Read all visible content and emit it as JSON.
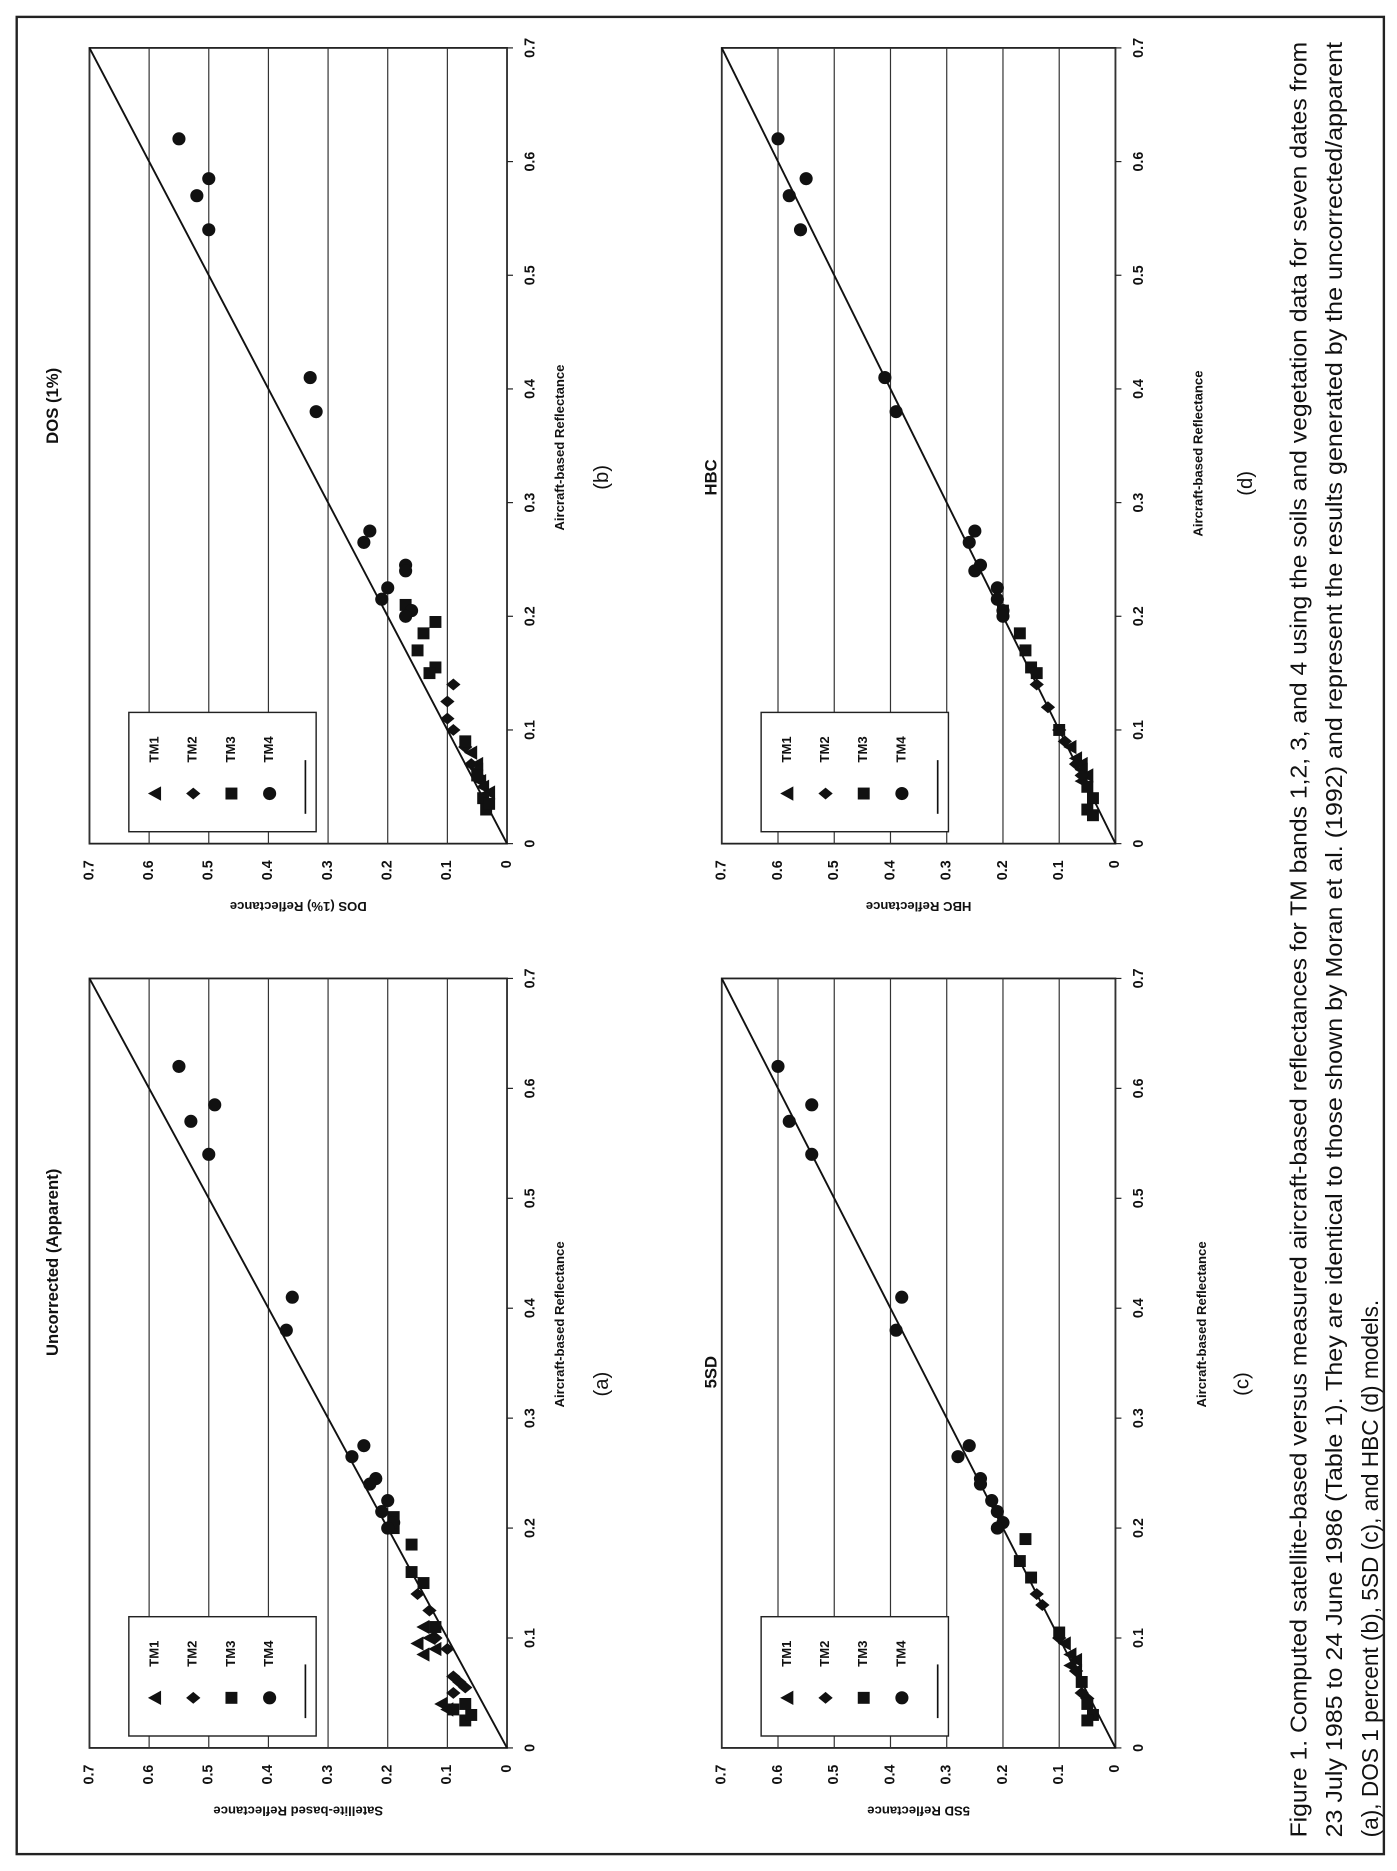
{
  "chart_data": [
    {
      "type": "scatter",
      "title": "Uncorrected (Apparent)",
      "panel_label": "(a)",
      "x_label": "Aircraft-based Reflectance",
      "y_label": "Satellite-based Reflectance",
      "xlim": [
        0,
        0.7
      ],
      "ylim": [
        0,
        0.7
      ],
      "xticks": [
        0,
        0.1,
        0.2,
        0.3,
        0.4,
        0.5,
        0.6,
        0.7
      ],
      "yticks": [
        0,
        0.1,
        0.2,
        0.3,
        0.4,
        0.5,
        0.6,
        0.7
      ],
      "grid": true,
      "diagonal": true,
      "legend": "upper-left",
      "series": [
        {
          "name": "TM1",
          "marker": "triangle",
          "color": "#111111",
          "x": [
            0.11,
            0.1,
            0.095,
            0.085,
            0.09,
            0.04,
            0.035
          ],
          "values": [
            0.14,
            0.13,
            0.15,
            0.14,
            0.12,
            0.11,
            0.1
          ]
        },
        {
          "name": "TM2",
          "marker": "diamond",
          "color": "#111111",
          "x": [
            0.14,
            0.125,
            0.1,
            0.09,
            0.065,
            0.06,
            0.055,
            0.05
          ],
          "values": [
            0.15,
            0.13,
            0.12,
            0.1,
            0.09,
            0.08,
            0.07,
            0.09
          ]
        },
        {
          "name": "TM3",
          "marker": "square",
          "color": "#111111",
          "x": [
            0.21,
            0.2,
            0.185,
            0.16,
            0.15,
            0.11,
            0.035,
            0.025,
            0.03,
            0.04
          ],
          "values": [
            0.19,
            0.19,
            0.16,
            0.16,
            0.14,
            0.12,
            0.09,
            0.07,
            0.06,
            0.07
          ]
        },
        {
          "name": "TM4",
          "marker": "circle",
          "color": "#111111",
          "x": [
            0.62,
            0.57,
            0.585,
            0.54,
            0.41,
            0.38,
            0.275,
            0.265,
            0.245,
            0.24,
            0.225,
            0.215,
            0.205,
            0.2
          ],
          "values": [
            0.55,
            0.53,
            0.49,
            0.5,
            0.36,
            0.37,
            0.24,
            0.26,
            0.22,
            0.23,
            0.2,
            0.21,
            0.19,
            0.2
          ]
        }
      ]
    },
    {
      "type": "scatter",
      "title": "DOS (1%)",
      "panel_label": "(b)",
      "x_label": "Aircraft-based Reflectance",
      "y_label": "DOS (1%) Reflectance",
      "xlim": [
        0,
        0.7
      ],
      "ylim": [
        0,
        0.7
      ],
      "xticks": [
        0,
        0.1,
        0.2,
        0.3,
        0.4,
        0.5,
        0.6,
        0.7
      ],
      "yticks": [
        0,
        0.1,
        0.2,
        0.3,
        0.4,
        0.5,
        0.6,
        0.7
      ],
      "grid": true,
      "diagonal": true,
      "legend": "upper-left",
      "series": [
        {
          "name": "TM1",
          "marker": "triangle",
          "color": "#111111",
          "x": [
            0.08,
            0.07,
            0.065,
            0.055,
            0.05,
            0.045
          ],
          "values": [
            0.06,
            0.05,
            0.05,
            0.045,
            0.04,
            0.03
          ]
        },
        {
          "name": "TM2",
          "marker": "diamond",
          "color": "#111111",
          "x": [
            0.14,
            0.125,
            0.11,
            0.1,
            0.085,
            0.07,
            0.06
          ],
          "values": [
            0.09,
            0.1,
            0.1,
            0.09,
            0.07,
            0.06,
            0.05
          ]
        },
        {
          "name": "TM3",
          "marker": "square",
          "color": "#111111",
          "x": [
            0.21,
            0.195,
            0.185,
            0.17,
            0.155,
            0.15,
            0.09,
            0.06,
            0.04,
            0.03,
            0.035
          ],
          "values": [
            0.17,
            0.12,
            0.14,
            0.15,
            0.12,
            0.13,
            0.07,
            0.05,
            0.04,
            0.035,
            0.03
          ]
        },
        {
          "name": "TM4",
          "marker": "circle",
          "color": "#111111",
          "x": [
            0.62,
            0.57,
            0.585,
            0.54,
            0.41,
            0.38,
            0.275,
            0.265,
            0.245,
            0.24,
            0.225,
            0.215,
            0.205,
            0.2
          ],
          "values": [
            0.55,
            0.52,
            0.5,
            0.5,
            0.33,
            0.32,
            0.23,
            0.24,
            0.17,
            0.17,
            0.2,
            0.21,
            0.16,
            0.17
          ]
        }
      ]
    },
    {
      "type": "scatter",
      "title": "5SD",
      "panel_label": "(c)",
      "x_label": "Aircraft-based Reflectance",
      "y_label": "5SD Reflectance",
      "xlim": [
        0,
        0.7
      ],
      "ylim": [
        0,
        0.7
      ],
      "xticks": [
        0,
        0.1,
        0.2,
        0.3,
        0.4,
        0.5,
        0.6,
        0.7
      ],
      "yticks": [
        0,
        0.1,
        0.2,
        0.3,
        0.4,
        0.5,
        0.6,
        0.7
      ],
      "grid": true,
      "diagonal": true,
      "legend": "upper-left",
      "series": [
        {
          "name": "TM1",
          "marker": "triangle",
          "color": "#111111",
          "x": [
            0.095,
            0.085,
            0.08,
            0.075,
            0.07
          ],
          "values": [
            0.09,
            0.08,
            0.07,
            0.08,
            0.07
          ]
        },
        {
          "name": "TM2",
          "marker": "diamond",
          "color": "#111111",
          "x": [
            0.14,
            0.13,
            0.1,
            0.07,
            0.05,
            0.045
          ],
          "values": [
            0.14,
            0.13,
            0.1,
            0.07,
            0.06,
            0.05
          ]
        },
        {
          "name": "TM3",
          "marker": "square",
          "color": "#111111",
          "x": [
            0.19,
            0.17,
            0.155,
            0.105,
            0.06,
            0.04,
            0.03,
            0.025
          ],
          "values": [
            0.16,
            0.17,
            0.15,
            0.1,
            0.06,
            0.05,
            0.04,
            0.05
          ]
        },
        {
          "name": "TM4",
          "marker": "circle",
          "color": "#111111",
          "x": [
            0.62,
            0.57,
            0.585,
            0.54,
            0.41,
            0.38,
            0.275,
            0.265,
            0.245,
            0.24,
            0.225,
            0.215,
            0.205,
            0.2
          ],
          "values": [
            0.6,
            0.58,
            0.54,
            0.54,
            0.38,
            0.39,
            0.26,
            0.28,
            0.24,
            0.24,
            0.22,
            0.21,
            0.2,
            0.21
          ]
        }
      ]
    },
    {
      "type": "scatter",
      "title": "HBC",
      "panel_label": "(d)",
      "x_label": "Aircraft-based Reflectance",
      "y_label": "HBC Reflectance",
      "xlim": [
        0,
        0.7
      ],
      "ylim": [
        0,
        0.7
      ],
      "xticks": [
        0,
        0.1,
        0.2,
        0.3,
        0.4,
        0.5,
        0.6,
        0.7
      ],
      "yticks": [
        0,
        0.1,
        0.2,
        0.3,
        0.4,
        0.5,
        0.6,
        0.7
      ],
      "grid": true,
      "diagonal": true,
      "legend": "upper-left",
      "series": [
        {
          "name": "TM1",
          "marker": "triangle",
          "color": "#111111",
          "x": [
            0.085,
            0.075,
            0.07,
            0.065,
            0.06,
            0.055
          ],
          "values": [
            0.08,
            0.07,
            0.06,
            0.06,
            0.05,
            0.06
          ]
        },
        {
          "name": "TM2",
          "marker": "diamond",
          "color": "#111111",
          "x": [
            0.14,
            0.12,
            0.1,
            0.09,
            0.07,
            0.06
          ],
          "values": [
            0.14,
            0.12,
            0.1,
            0.09,
            0.07,
            0.06
          ]
        },
        {
          "name": "TM3",
          "marker": "square",
          "color": "#111111",
          "x": [
            0.205,
            0.185,
            0.17,
            0.155,
            0.15,
            0.1,
            0.05,
            0.04,
            0.03,
            0.025
          ],
          "values": [
            0.2,
            0.17,
            0.16,
            0.15,
            0.14,
            0.1,
            0.05,
            0.04,
            0.05,
            0.04
          ]
        },
        {
          "name": "TM4",
          "marker": "circle",
          "color": "#111111",
          "x": [
            0.62,
            0.57,
            0.585,
            0.54,
            0.41,
            0.38,
            0.275,
            0.265,
            0.245,
            0.24,
            0.225,
            0.215,
            0.205,
            0.2
          ],
          "values": [
            0.6,
            0.58,
            0.55,
            0.56,
            0.41,
            0.39,
            0.25,
            0.26,
            0.24,
            0.25,
            0.21,
            0.21,
            0.2,
            0.2
          ]
        }
      ]
    }
  ],
  "caption": {
    "lines": [
      "Figure 1. Computed satellite-based versus measured aircraft-based reflectances for TM bands 1,2, 3, and 4 using the soils and vegetation data for seven dates from",
      "23 July 1985 to 24 June 1986 (Table 1). They are identical to those shown by Moran et al. (1992) and represent the results generated by the uncorrected/apparent",
      "(a), DOS 1 percent (b), 5SD (c), and HBC (d) models."
    ]
  }
}
